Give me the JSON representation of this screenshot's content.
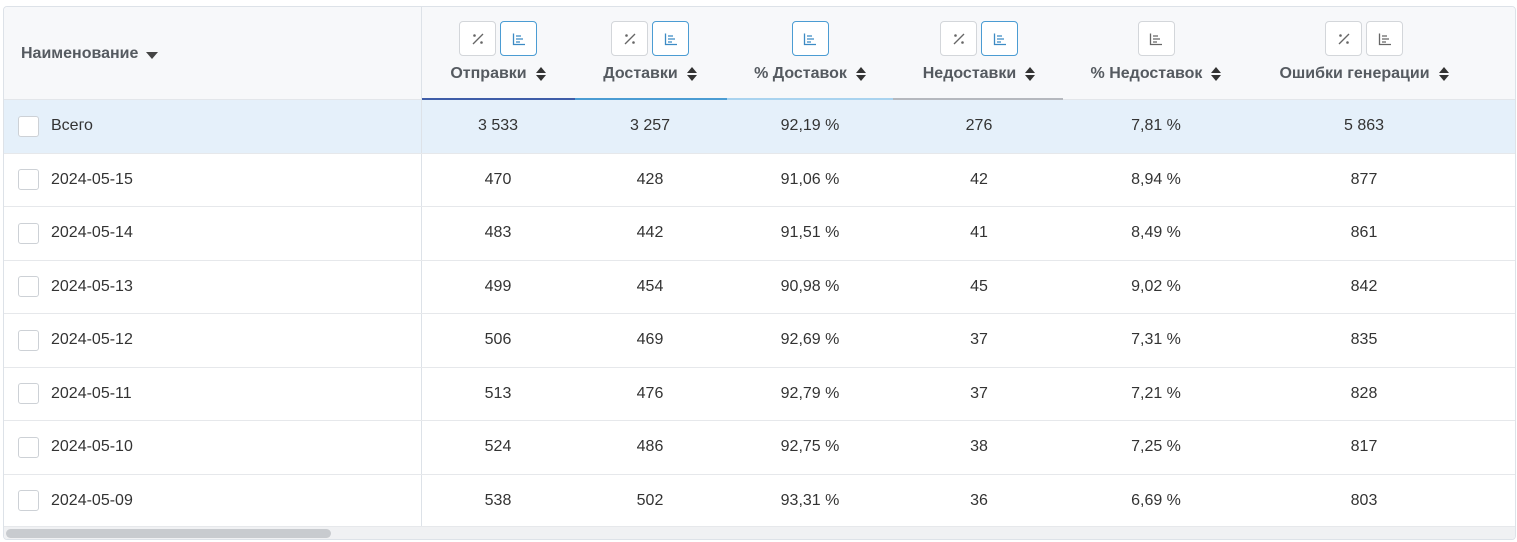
{
  "table": {
    "name_header": "Наименование",
    "columns": [
      {
        "key": "sends",
        "label": "Отправки",
        "buttons": [
          "percent-icon",
          "bar-chart-icon"
        ],
        "active": [
          false,
          true
        ],
        "color": "#3f5da8"
      },
      {
        "key": "deliveries",
        "label": "Доставки",
        "buttons": [
          "percent-icon",
          "bar-chart-icon"
        ],
        "active": [
          false,
          true
        ],
        "color": "#4b9cd3"
      },
      {
        "key": "delivery_pct",
        "label": "% Доставок",
        "buttons": [
          "bar-chart-icon"
        ],
        "active": [
          true
        ],
        "color": "#a9d3ef"
      },
      {
        "key": "non_deliveries",
        "label": "Недоставки",
        "buttons": [
          "percent-icon",
          "bar-chart-icon"
        ],
        "active": [
          false,
          true
        ],
        "color": "#b5b8be"
      },
      {
        "key": "non_delivery_pct",
        "label": "% Недоставок",
        "buttons": [
          "bar-chart-icon"
        ],
        "active": [
          false
        ],
        "color": ""
      },
      {
        "key": "gen_errors",
        "label": "Ошибки генерации",
        "buttons": [
          "percent-icon",
          "bar-chart-icon"
        ],
        "active": [
          false,
          false
        ],
        "color": ""
      }
    ],
    "rows": [
      {
        "name": "Всего",
        "total": true,
        "values": [
          "3 533",
          "3 257",
          "92,19 %",
          "276",
          "7,81 %",
          "5 863"
        ]
      },
      {
        "name": "2024-05-15",
        "values": [
          "470",
          "428",
          "91,06 %",
          "42",
          "8,94 %",
          "877"
        ]
      },
      {
        "name": "2024-05-14",
        "values": [
          "483",
          "442",
          "91,51 %",
          "41",
          "8,49 %",
          "861"
        ]
      },
      {
        "name": "2024-05-13",
        "values": [
          "499",
          "454",
          "90,98 %",
          "45",
          "9,02 %",
          "842"
        ]
      },
      {
        "name": "2024-05-12",
        "values": [
          "506",
          "469",
          "92,69 %",
          "37",
          "7,31 %",
          "835"
        ]
      },
      {
        "name": "2024-05-11",
        "values": [
          "513",
          "476",
          "92,79 %",
          "37",
          "7,21 %",
          "828"
        ]
      },
      {
        "name": "2024-05-10",
        "values": [
          "524",
          "486",
          "92,75 %",
          "38",
          "7,25 %",
          "817"
        ]
      },
      {
        "name": "2024-05-09",
        "values": [
          "538",
          "502",
          "93,31 %",
          "36",
          "6,69 %",
          "803"
        ]
      }
    ]
  }
}
